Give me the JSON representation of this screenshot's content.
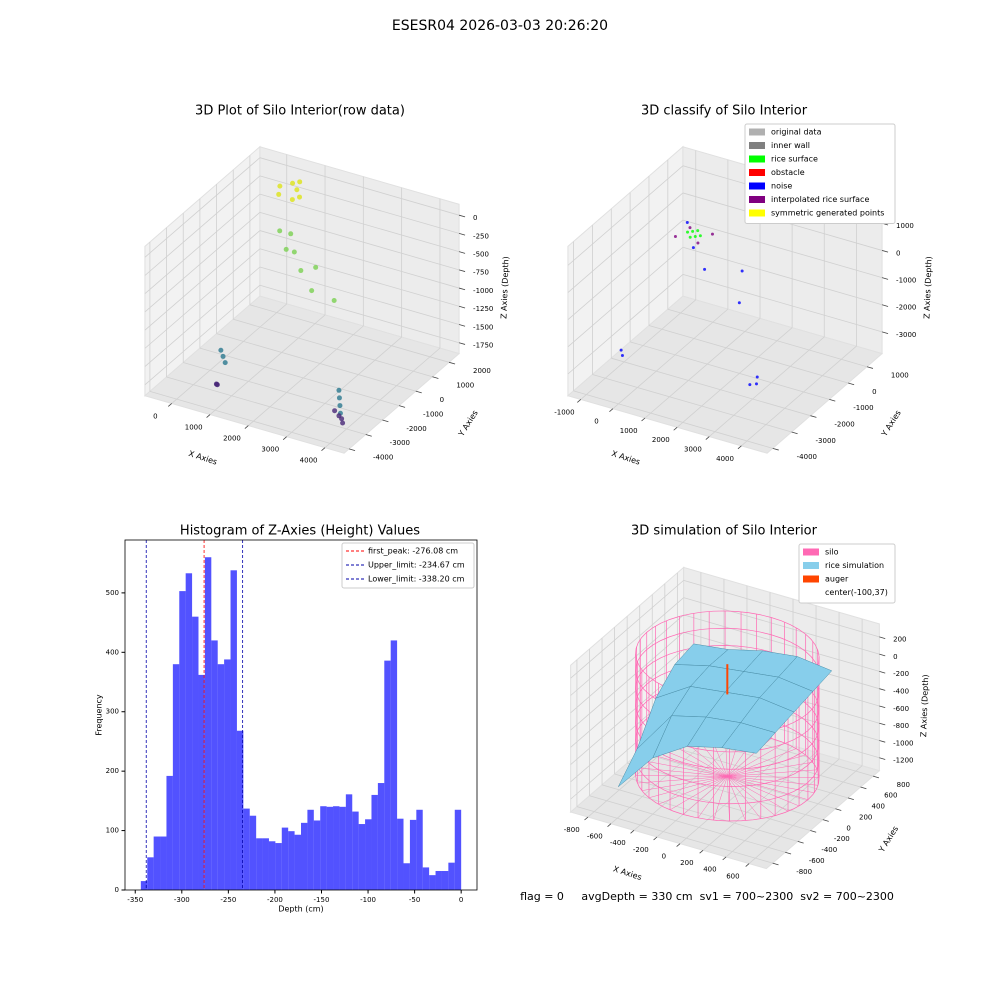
{
  "title": "ESESR04 2026-03-03 20:26:20",
  "footer": "flag = 0     avgDepth = 330 cm  sv1 = 700~2300  sv2 = 700~2300",
  "chart_data": [
    {
      "type": "scatter3d",
      "title": "3D Plot of Silo Interior(row data)",
      "xlabel": "X Axies",
      "ylabel": "Y Axies",
      "zlabel": "Z Axies (Depth)",
      "xlim": [
        -700,
        4500
      ],
      "ylim": [
        -4300,
        2600
      ],
      "zlim": [
        -1900,
        150
      ],
      "xticks": [
        0,
        1000,
        2000,
        3000,
        4000
      ],
      "yticks": [
        -4000,
        -3000,
        -2000,
        -1000,
        0,
        1000,
        2000
      ],
      "zticks": [
        0,
        -250,
        -500,
        -750,
        -1000,
        -1250,
        -1500,
        -1750
      ],
      "series": [
        {
          "color": "#dde318",
          "x": [
            300,
            500,
            700,
            900,
            400,
            800,
            600
          ],
          "y": [
            1500,
            1800,
            1600,
            1300,
            1200,
            1100,
            2000
          ],
          "z": [
            -20,
            -10,
            -30,
            -40,
            -60,
            -50,
            -15
          ]
        },
        {
          "color": "#7ad151",
          "x": [
            600,
            900,
            1500,
            2000,
            2500,
            1200,
            1800,
            800
          ],
          "y": [
            800,
            500,
            0,
            -500,
            -300,
            300,
            200,
            1000
          ],
          "z": [
            -450,
            -600,
            -700,
            -800,
            -900,
            -550,
            -650,
            -500
          ]
        },
        {
          "color": "#2a788e",
          "x": [
            3800,
            3900,
            4000,
            4100,
            500,
            600,
            700
          ],
          "y": [
            -3000,
            -3200,
            -3400,
            -3600,
            -2500,
            -2600,
            -2700
          ],
          "z": [
            -1400,
            -1450,
            -1500,
            -1550,
            -1450,
            -1500,
            -1550
          ]
        },
        {
          "color": "#482878",
          "x": [
            3600,
            3800,
            4000,
            4200,
            600,
            700,
            800
          ],
          "y": [
            -2800,
            -3000,
            -3300,
            -3700,
            -3000,
            -3200,
            -3400
          ],
          "z": [
            -1750,
            -1750,
            -1700,
            -1650,
            -1800,
            -1750,
            -1700
          ]
        }
      ]
    },
    {
      "type": "scatter3d",
      "title": "3D classify of Silo Interior",
      "xlabel": "X Axies",
      "ylabel": "Y Axies",
      "zlabel": "Z Axies (Depth)",
      "xlim": [
        -1400,
        4800
      ],
      "ylim": [
        -4300,
        1800
      ],
      "zlim": [
        -3800,
        1700
      ],
      "xticks": [
        -1000,
        0,
        1000,
        2000,
        3000,
        4000
      ],
      "yticks": [
        -4000,
        -3000,
        -2000,
        -1000,
        0,
        1000
      ],
      "zticks": [
        -3000,
        -2000,
        -1000,
        0,
        1000
      ],
      "legend": "upper right",
      "series": [
        {
          "name": "original data",
          "color": "#b0b0b0",
          "x": [],
          "y": [],
          "z": []
        },
        {
          "name": "inner wall",
          "color": "#808080",
          "x": [],
          "y": [],
          "z": []
        },
        {
          "name": "rice surface",
          "color": "#00ff00",
          "x": [
            -200,
            0,
            200,
            0,
            -100,
            100
          ],
          "y": [
            0,
            200,
            0,
            -200,
            100,
            -100
          ],
          "z": [
            50,
            50,
            50,
            50,
            50,
            50
          ]
        },
        {
          "name": "obstacle",
          "color": "#ff0000",
          "x": [],
          "y": [],
          "z": []
        },
        {
          "name": "noise",
          "color": "#0000ff",
          "x": [
            -500,
            100,
            800,
            1500,
            2000,
            3500,
            4000,
            4200,
            -800,
            -700
          ],
          "y": [
            500,
            -200,
            -800,
            0,
            -1000,
            -3000,
            -3500,
            -3800,
            -2500,
            -2600
          ],
          "z": [
            0,
            -300,
            -500,
            -800,
            -1200,
            -2500,
            -2000,
            -1500,
            -3000,
            -3100
          ]
        },
        {
          "name": "interpolated rice surface",
          "color": "#800080",
          "x": [
            -400,
            -300,
            300,
            400
          ],
          "y": [
            -300,
            300,
            -300,
            300
          ],
          "z": [
            0,
            0,
            0,
            0
          ]
        },
        {
          "name": "symmetric generated points",
          "color": "#ffff00",
          "x": [],
          "y": [],
          "z": []
        }
      ]
    },
    {
      "type": "histogram",
      "title": "Histogram of Z-Axies (Height) Values",
      "xlabel": "Depth (cm)",
      "ylabel": "Frequency",
      "color": "#0000ff",
      "alpha": 0.68,
      "xlim": [
        -361,
        17
      ],
      "ylim": [
        0,
        589
      ],
      "xticks": [
        -350,
        -300,
        -250,
        -200,
        -150,
        -100,
        -50,
        0
      ],
      "yticks": [
        0,
        100,
        200,
        300,
        400,
        500
      ],
      "bins": [
        -344,
        -337.12,
        -330.24,
        -323.36,
        -316.48,
        -309.6,
        -302.72,
        -295.84,
        -288.96,
        -282.08,
        -275.2,
        -268.32,
        -261.44,
        -254.56,
        -247.68,
        -240.8,
        -233.92,
        -227.04,
        -220.16,
        -213.28,
        -206.4,
        -199.52,
        -192.64,
        -185.76,
        -178.88,
        -172,
        -165.12,
        -158.24,
        -151.36,
        -144.48,
        -137.6,
        -130.72,
        -123.84,
        -116.96,
        -110.08,
        -103.2,
        -96.32,
        -89.44,
        -82.56,
        -75.68,
        -68.8,
        -61.92,
        -55.04,
        -48.16,
        -41.28,
        -34.4,
        -27.52,
        -20.64,
        -13.76,
        -6.88,
        0
      ],
      "values": [
        15,
        55,
        90,
        90,
        192,
        380,
        503,
        533,
        460,
        362,
        560,
        420,
        380,
        388,
        538,
        268,
        137,
        125,
        87,
        87,
        82,
        79,
        105,
        99,
        93,
        113,
        135,
        117,
        141,
        140,
        141,
        140,
        161,
        132,
        111,
        119,
        160,
        180,
        386,
        420,
        120,
        45,
        118,
        135,
        38,
        25,
        32,
        32,
        46,
        135
      ],
      "lines": [
        {
          "name": "first_peak: -276.08 cm",
          "value": -276.08,
          "color": "#ff0000"
        },
        {
          "name": "Upper_limit: -234.67 cm",
          "value": -234.67,
          "color": "#0000aa"
        },
        {
          "name": "Lower_limit: -338.20 cm",
          "value": -338.2,
          "color": "#0000aa"
        }
      ]
    },
    {
      "type": "surface3d",
      "title": "3D simulation of Silo Interior",
      "xlabel": "X Axies",
      "ylabel": "Y Axies",
      "zlabel": "Z Axies (Depth)",
      "xlim": [
        -950,
        750
      ],
      "ylim": [
        -900,
        900
      ],
      "zlim": [
        -1350,
        350
      ],
      "xticks": [
        -800,
        -600,
        -400,
        -200,
        0,
        200,
        400,
        600
      ],
      "yticks": [
        -800,
        -600,
        -400,
        -200,
        0,
        200,
        400,
        600,
        800
      ],
      "zticks": [
        -1200,
        -1000,
        -800,
        -600,
        -400,
        -200,
        0,
        200
      ],
      "legend": "upper right",
      "silo": {
        "name": "silo",
        "color": "#ff69b4",
        "center": [
          -100,
          37
        ],
        "radius": 700,
        "zrange": [
          -1200,
          200
        ]
      },
      "rice": {
        "name": "rice simulation",
        "color": "#87ceeb",
        "x": [
          -700,
          -400,
          -100,
          200,
          500
        ],
        "y": [
          -600,
          -300,
          0,
          300,
          600
        ],
        "z": [
          [
            -1150,
            -700,
            -450,
            -350,
            -300
          ],
          [
            -900,
            -400,
            -300,
            -250,
            -250
          ],
          [
            -500,
            -250,
            -200,
            -150,
            -200
          ],
          [
            -300,
            -200,
            -150,
            -100,
            -150
          ],
          [
            -250,
            -200,
            -100,
            -50,
            -100
          ]
        ]
      },
      "auger": {
        "name": "auger",
        "color": "#ff4500",
        "x": [
          -100,
          -100
        ],
        "y": [
          37,
          37
        ],
        "z": [
          -250,
          100
        ]
      },
      "center_label": "center(-100,37)"
    }
  ]
}
